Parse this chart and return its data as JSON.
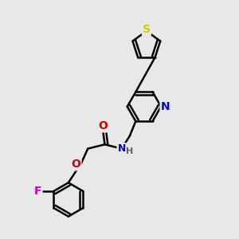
{
  "background_color": "#e8e8e8",
  "bond_color": "#000000",
  "bond_width": 1.8,
  "atom_colors": {
    "S": "#cccc00",
    "N": "#0000cc",
    "O": "#cc0000",
    "F": "#cc00cc",
    "H": "#606060"
  },
  "figsize": [
    3.0,
    3.0
  ],
  "dpi": 100,
  "xlim": [
    0,
    10
  ],
  "ylim": [
    0,
    10
  ]
}
